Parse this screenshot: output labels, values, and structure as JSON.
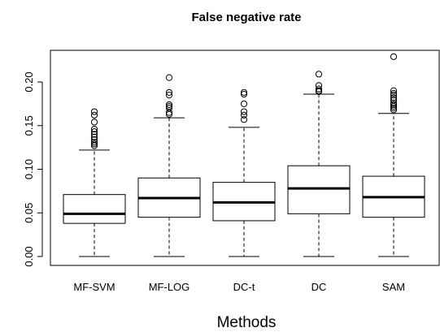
{
  "chart_data": {
    "type": "boxplot",
    "title": "False negative rate",
    "xlabel": "Methods",
    "ylabel": "",
    "ylim": [
      -0.01,
      0.235
    ],
    "yticks": [
      0.0,
      0.05,
      0.1,
      0.15,
      0.2
    ],
    "ytick_labels": [
      "0.00",
      "0.05",
      "0.10",
      "0.15",
      "0.20"
    ],
    "grid": false,
    "legend": "none",
    "categories": [
      "MF-SVM",
      "MF-LOG",
      "DC-t",
      "DC",
      "SAM"
    ],
    "boxes": [
      {
        "category": "MF-SVM",
        "min": 0.0,
        "q1": 0.038,
        "median": 0.049,
        "q3": 0.071,
        "max": 0.122,
        "outliers": [
          0.127,
          0.129,
          0.131,
          0.134,
          0.137,
          0.14,
          0.143,
          0.146,
          0.154,
          0.162,
          0.166
        ]
      },
      {
        "category": "MF-LOG",
        "min": 0.0,
        "q1": 0.045,
        "median": 0.067,
        "q3": 0.09,
        "max": 0.159,
        "outliers": [
          0.163,
          0.165,
          0.17,
          0.172,
          0.174,
          0.185,
          0.188,
          0.205
        ]
      },
      {
        "category": "DC-t",
        "min": 0.0,
        "q1": 0.041,
        "median": 0.062,
        "q3": 0.085,
        "max": 0.148,
        "outliers": [
          0.157,
          0.162,
          0.166,
          0.175,
          0.186,
          0.188
        ]
      },
      {
        "category": "DC",
        "min": 0.0,
        "q1": 0.049,
        "median": 0.078,
        "q3": 0.104,
        "max": 0.186,
        "outliers": [
          0.189,
          0.19,
          0.192,
          0.196,
          0.209
        ]
      },
      {
        "category": "SAM",
        "min": 0.0,
        "q1": 0.045,
        "median": 0.068,
        "q3": 0.092,
        "max": 0.164,
        "outliers": [
          0.168,
          0.17,
          0.172,
          0.174,
          0.176,
          0.179,
          0.182,
          0.185,
          0.187,
          0.19,
          0.229
        ]
      }
    ]
  }
}
